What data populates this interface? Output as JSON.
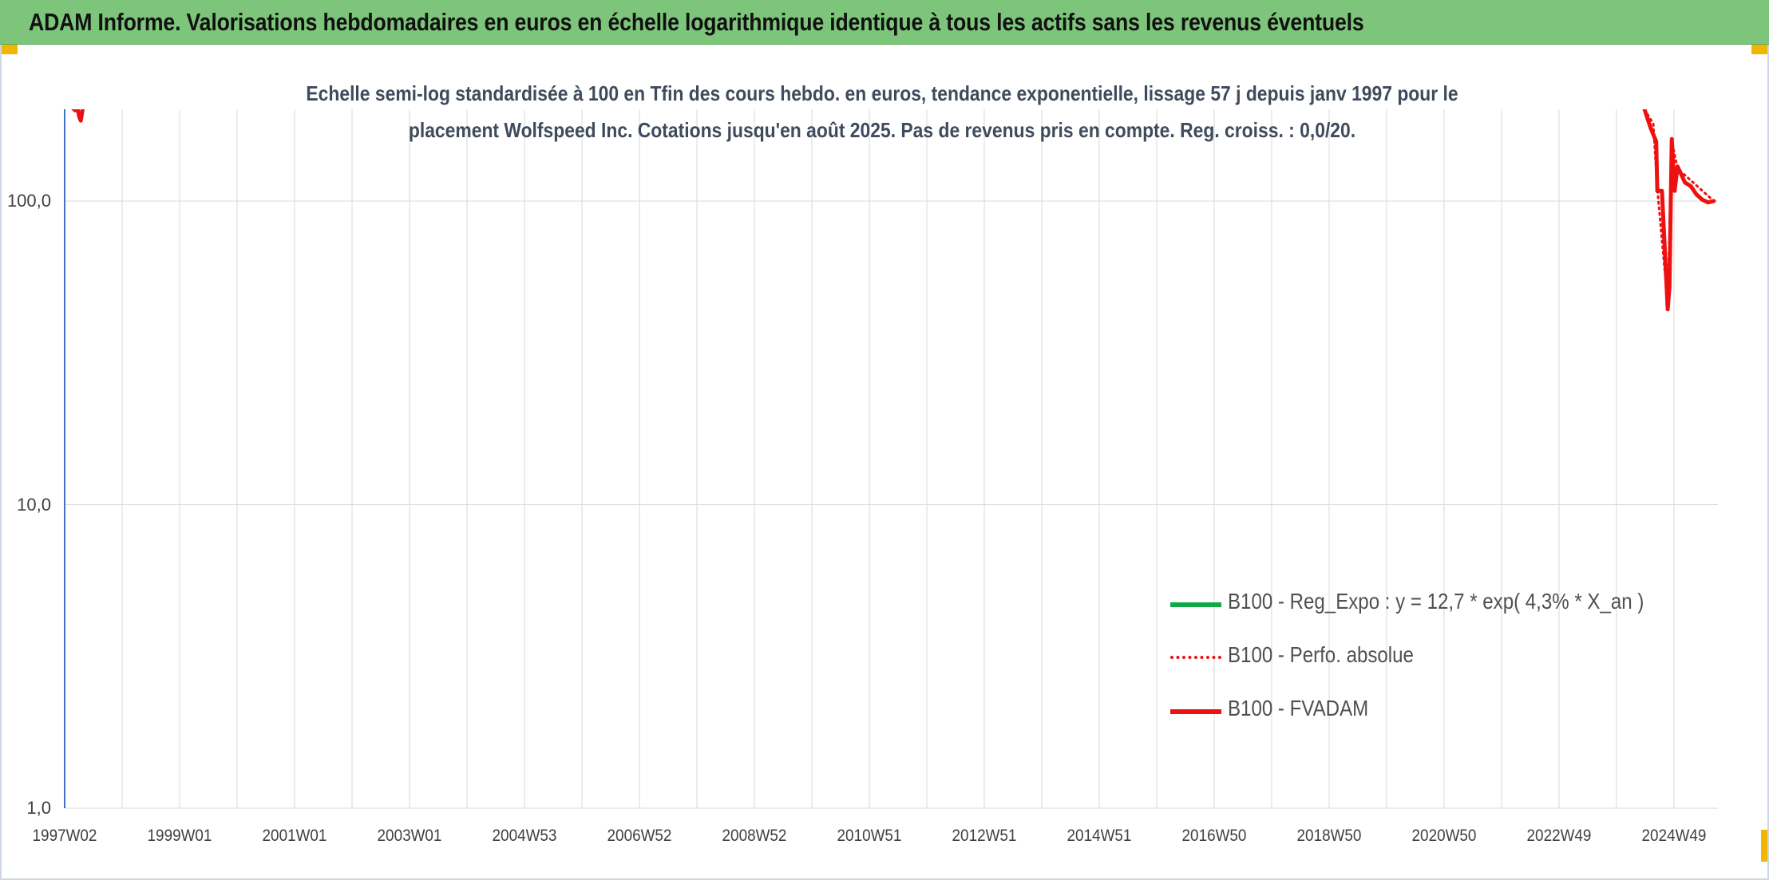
{
  "banner": {
    "title": "ADAM Informe. Valorisations hebdomadaires en euros en échelle logarithmique identique à tous les actifs sans les revenus éventuels"
  },
  "colors": {
    "banner": "#7dc57a",
    "corner_accent": "#f2b600",
    "fvadam": "#ee1111",
    "perfo": "#ee1111",
    "reg_expo": "#12a84a",
    "y_axis": "#4472c4"
  },
  "chart_data": {
    "type": "line",
    "title": "Echelle semi-log standardisée à 100 en Tfin des cours hebdo. en euros, tendance exponentielle, lissage 57 j depuis janv 1997 pour le placement Wolfspeed Inc. Cotations jusqu'en août 2025. Pas de revenus pris en compte. Reg. croiss. : 0,0/20.",
    "y_scale": "log",
    "ylim": [
      1,
      200
    ],
    "y_ticks": [
      "1,0",
      "10,0",
      "100,0"
    ],
    "y_tick_values": [
      1,
      10,
      100
    ],
    "xlim": [
      1997.02,
      2025.67
    ],
    "x_ticks": [
      "1997W02",
      "1999W01",
      "2001W01",
      "2003W01",
      "2004W53",
      "2006W52",
      "2008W52",
      "2010W51",
      "2012W51",
      "2014W51",
      "2016W50",
      "2018W50",
      "2020W50",
      "2022W49",
      "2024W49"
    ],
    "grid": "vertical and horizontal",
    "legend_position": "lower-right",
    "legend": [
      "B100 - Reg_Expo : y = 12,7 * exp( 4,3% *  X_an )",
      "B100 - Perfo. absolue",
      "B100 - FVADAM"
    ],
    "series": [
      {
        "name": "B100 - FVADAM",
        "style": "solid-thick",
        "segments": [
          [
            [
              1997.02,
              205
            ],
            [
              1997.1,
              208
            ],
            [
              1997.2,
              199
            ],
            [
              1997.25,
              200
            ],
            [
              1997.27,
              190
            ],
            [
              1997.3,
              184
            ],
            [
              1997.33,
              200
            ]
          ],
          [
            [
              2024.4,
              200
            ],
            [
              2024.5,
              175
            ],
            [
              2024.6,
              157
            ],
            [
              2024.62,
              108
            ],
            [
              2024.7,
              108
            ],
            [
              2024.8,
              44
            ],
            [
              2024.83,
              52
            ],
            [
              2024.87,
              160
            ],
            [
              2024.92,
              108
            ],
            [
              2024.97,
              130
            ],
            [
              2025.1,
              115
            ],
            [
              2025.2,
              112
            ],
            [
              2025.3,
              105
            ],
            [
              2025.4,
              101
            ],
            [
              2025.5,
              99
            ],
            [
              2025.6,
              100
            ]
          ]
        ]
      },
      {
        "name": "B100 - Perfo. absolue",
        "style": "dotted",
        "segments": [
          [
            [
              2024.4,
              200
            ],
            [
              2024.55,
              180
            ],
            [
              2024.62,
              110
            ],
            [
              2024.8,
              46
            ],
            [
              2024.87,
              158
            ],
            [
              2024.97,
              128
            ],
            [
              2025.6,
              100
            ]
          ]
        ]
      }
    ]
  }
}
